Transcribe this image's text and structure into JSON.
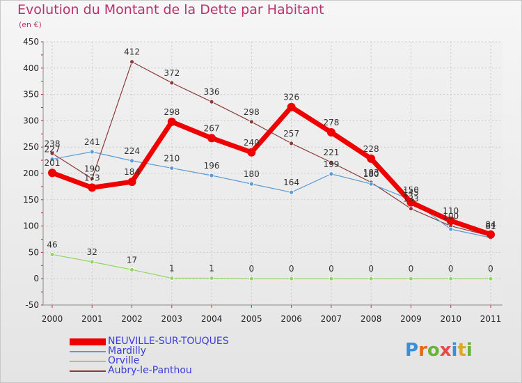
{
  "title": "Evolution du Montant de la Dette par Habitant",
  "subtitle": "(en €)",
  "logo": {
    "text": "Proxiti",
    "letter_colors": [
      "#3a8fd8",
      "#e06a1e",
      "#6ab33a",
      "#e84a4a",
      "#3a8fd8",
      "#e0a81e",
      "#6ab33a"
    ]
  },
  "chart_data": {
    "type": "line",
    "x": [
      "2000",
      "2001",
      "2002",
      "2003",
      "2004",
      "2005",
      "2006",
      "2007",
      "2008",
      "2009",
      "2010",
      "2011"
    ],
    "ylim": [
      -50,
      450
    ],
    "yticks": [
      "-50",
      "0",
      "50",
      "100",
      "150",
      "200",
      "250",
      "300",
      "350",
      "400",
      "450"
    ],
    "legend_position": "bottom-left",
    "series": [
      {
        "name": "NEUVILLE-SUR-TOUQUES",
        "color": "#ee0000",
        "values": [
          201,
          173,
          184,
          298,
          267,
          240,
          326,
          278,
          228,
          145,
          110,
          84
        ],
        "labels": [
          "201",
          "173",
          "184",
          "298",
          "267",
          "240",
          "326",
          "278",
          "228",
          "145",
          "110",
          "84"
        ]
      },
      {
        "name": "Mardilly",
        "color": "#5b9bd5",
        "values": [
          227,
          241,
          224,
          210,
          196,
          180,
          164,
          199,
          180,
          150,
          94,
          78
        ],
        "labels": [
          "227",
          "241",
          "224",
          "210",
          "196",
          "180",
          "164",
          "199",
          "180",
          "150",
          "",
          ""
        ]
      },
      {
        "name": "Orville",
        "color": "#8ed660",
        "values": [
          46,
          32,
          17,
          1,
          1,
          0,
          0,
          0,
          0,
          0,
          0,
          0
        ],
        "labels": [
          "46",
          "32",
          "17",
          "1",
          "1",
          "0",
          "0",
          "0",
          "0",
          "0",
          "0",
          "0"
        ]
      },
      {
        "name": "Aubry-le-Panthou",
        "color": "#8b3a3a",
        "values": [
          238,
          190,
          412,
          372,
          336,
          298,
          257,
          221,
          183,
          133,
          100,
          81
        ],
        "labels": [
          "238",
          "190",
          "412",
          "372",
          "336",
          "298",
          "257",
          "221",
          "183",
          "133",
          "100",
          "81"
        ]
      }
    ]
  }
}
